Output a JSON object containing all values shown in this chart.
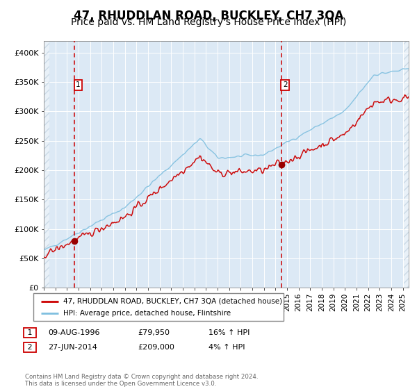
{
  "title": "47, RHUDDLAN ROAD, BUCKLEY, CH7 3QA",
  "subtitle": "Price paid vs. HM Land Registry's House Price Index (HPI)",
  "legend_line1": "47, RHUDDLAN ROAD, BUCKLEY, CH7 3QA (detached house)",
  "legend_line2": "HPI: Average price, detached house, Flintshire",
  "annotation1_date": "09-AUG-1996",
  "annotation1_price": "£79,950",
  "annotation1_hpi": "16% ↑ HPI",
  "annotation1_year": 1996.62,
  "annotation1_value": 79950,
  "annotation2_date": "27-JUN-2014",
  "annotation2_price": "£209,000",
  "annotation2_hpi": "4% ↑ HPI",
  "annotation2_year": 2014.49,
  "annotation2_value": 209000,
  "xmin": 1994.0,
  "xmax": 2025.5,
  "ymin": 0,
  "ymax": 420000,
  "background_color": "#dce9f5",
  "red_line_color": "#cc0000",
  "blue_line_color": "#7fbfdf",
  "dashed_line_color": "#cc0000",
  "marker_color": "#990000",
  "title_fontsize": 12,
  "subtitle_fontsize": 10,
  "footer_text": "Contains HM Land Registry data © Crown copyright and database right 2024.\nThis data is licensed under the Open Government Licence v3.0."
}
